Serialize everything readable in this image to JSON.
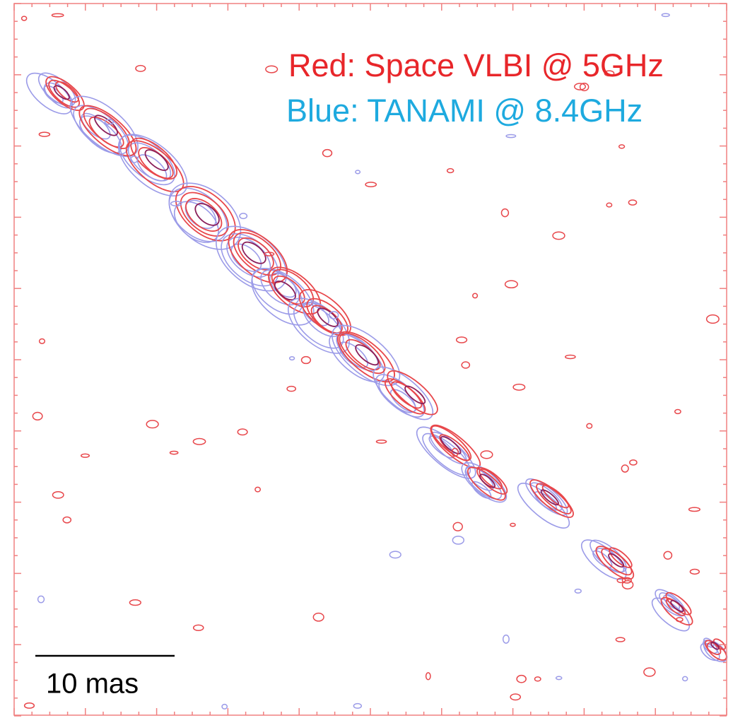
{
  "legend": {
    "red": "Red: Space VLBI @ 5GHz",
    "blue": "Blue: TANAMI @ 8.4GHz"
  },
  "scale_bar": {
    "label": "10 mas"
  }
}
